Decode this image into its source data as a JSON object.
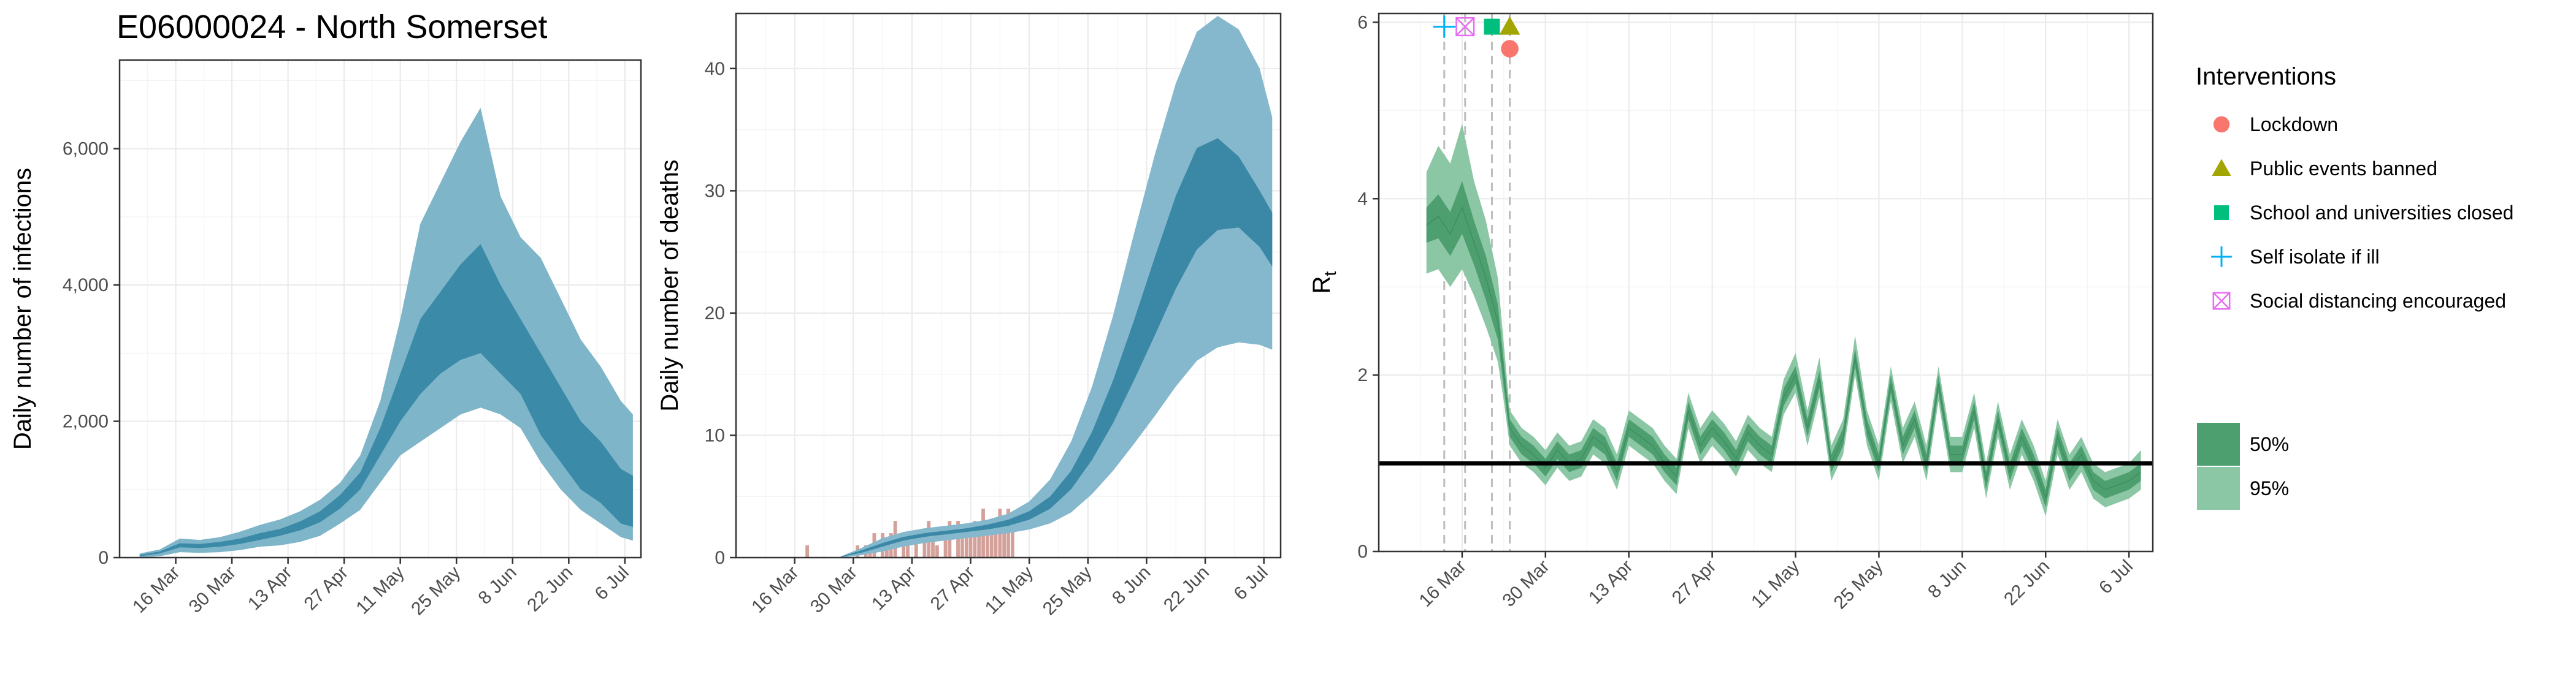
{
  "title": "E06000024 - North Somerset",
  "colors": {
    "infection_band_95": "#7fb5c8",
    "infection_band_50": "#3a8aa8",
    "deaths_band_95": "#85b8cc",
    "deaths_band_50": "#3a88a6",
    "observed_deaths": "#d4a09a",
    "rt_band_95": "#8cc7a5",
    "rt_band_50": "#4e9f6f",
    "lockdown": "#f8766d",
    "public_events": "#a3a500",
    "schools": "#00bf7d",
    "self_isolate": "#00b0f6",
    "social_distancing": "#e76bf3"
  },
  "chart_data": [
    {
      "type": "area",
      "ylabel": "Daily number of infections",
      "xlabel": "",
      "x_ticks": [
        "16 Mar",
        "30 Mar",
        "13 Apr",
        "27 Apr",
        "11 May",
        "25 May",
        "8 Jun",
        "22 Jun",
        "6 Jul"
      ],
      "x_tick_days": [
        14,
        28,
        42,
        56,
        70,
        84,
        98,
        112,
        126
      ],
      "x_range_days": [
        0,
        130
      ],
      "y_ticks": [
        "0",
        "2,000",
        "4,000",
        "6,000"
      ],
      "y_tick_values": [
        0,
        2000,
        4000,
        6000
      ],
      "ylim": [
        0,
        7300
      ],
      "grid": true,
      "x_days": [
        5,
        10,
        15,
        20,
        25,
        30,
        35,
        40,
        45,
        50,
        55,
        60,
        65,
        70,
        75,
        80,
        85,
        90,
        95,
        100,
        105,
        110,
        115,
        120,
        125,
        128
      ],
      "band_95_low": [
        0,
        20,
        80,
        70,
        80,
        110,
        160,
        180,
        230,
        320,
        500,
        700,
        1100,
        1500,
        1700,
        1900,
        2100,
        2200,
        2100,
        1900,
        1400,
        1000,
        700,
        500,
        300,
        250
      ],
      "band_95_high": [
        60,
        120,
        280,
        260,
        300,
        380,
        480,
        560,
        680,
        850,
        1100,
        1500,
        2300,
        3500,
        4900,
        5500,
        6100,
        6600,
        5300,
        4700,
        4400,
        3800,
        3200,
        2800,
        2300,
        2100
      ],
      "band_50_low": [
        20,
        60,
        150,
        140,
        160,
        200,
        260,
        320,
        400,
        520,
        720,
        1000,
        1500,
        2000,
        2400,
        2700,
        2900,
        3000,
        2700,
        2400,
        1800,
        1400,
        1000,
        800,
        500,
        450
      ],
      "band_50_high": [
        40,
        90,
        210,
        200,
        230,
        280,
        360,
        420,
        530,
        680,
        920,
        1250,
        1900,
        2700,
        3500,
        3900,
        4300,
        4600,
        4000,
        3500,
        3000,
        2500,
        2000,
        1700,
        1300,
        1200
      ]
    },
    {
      "type": "area",
      "ylabel": "Daily number of deaths",
      "xlabel": "",
      "x_ticks": [
        "16 Mar",
        "30 Mar",
        "13 Apr",
        "27 Apr",
        "11 May",
        "25 May",
        "8 Jun",
        "22 Jun",
        "6 Jul"
      ],
      "x_tick_days": [
        14,
        28,
        42,
        56,
        70,
        84,
        98,
        112,
        126
      ],
      "x_range_days": [
        0,
        130
      ],
      "y_ticks": [
        "0",
        "10",
        "20",
        "30",
        "40"
      ],
      "y_tick_values": [
        0,
        10,
        20,
        30,
        40
      ],
      "ylim": [
        0,
        44.5
      ],
      "grid": true,
      "x_days": [
        25,
        30,
        35,
        40,
        45,
        50,
        55,
        60,
        65,
        70,
        75,
        80,
        85,
        90,
        95,
        100,
        105,
        110,
        115,
        120,
        125,
        128
      ],
      "band_95_low": [
        0,
        0.2,
        0.5,
        0.9,
        1.2,
        1.4,
        1.6,
        1.8,
        2.0,
        2.3,
        2.8,
        3.7,
        5.2,
        7.1,
        9.3,
        11.6,
        14.0,
        16.1,
        17.2,
        17.6,
        17.4,
        17.0
      ],
      "band_95_high": [
        0.1,
        0.8,
        1.6,
        2.1,
        2.4,
        2.6,
        2.8,
        3.1,
        3.6,
        4.6,
        6.4,
        9.5,
        14.0,
        19.8,
        26.5,
        33.0,
        38.8,
        43.0,
        44.3,
        43.2,
        40.0,
        36.0
      ],
      "band_50_low": [
        0.05,
        0.4,
        0.9,
        1.4,
        1.7,
        1.9,
        2.1,
        2.3,
        2.6,
        3.1,
        4.0,
        5.6,
        8.0,
        11.0,
        14.5,
        18.2,
        22.0,
        25.2,
        26.8,
        27.0,
        25.4,
        23.8
      ],
      "band_50_high": [
        0.08,
        0.6,
        1.2,
        1.7,
        2.0,
        2.2,
        2.4,
        2.7,
        3.1,
        3.8,
        5.0,
        7.1,
        10.3,
        14.5,
        19.4,
        24.6,
        29.6,
        33.5,
        34.3,
        32.8,
        30.0,
        28.2
      ],
      "observed_days": [
        17,
        29,
        31,
        32,
        33,
        35,
        36,
        37,
        38,
        40,
        41,
        43,
        45,
        46,
        47,
        48,
        50,
        51,
        53,
        54,
        55,
        56,
        57,
        58,
        59,
        60,
        61,
        62,
        63,
        64,
        65,
        66
      ],
      "observed_values": [
        1,
        1,
        1,
        1,
        2,
        2,
        1,
        2,
        3,
        2,
        1,
        2,
        2,
        3,
        2,
        1,
        2,
        3,
        3,
        2,
        2,
        2,
        3,
        2,
        4,
        3,
        2,
        3,
        4,
        3,
        4,
        3
      ]
    },
    {
      "type": "area",
      "ylabel": "R",
      "ylabel_subscript": "t",
      "xlabel": "",
      "x_ticks": [
        "16 Mar",
        "30 Mar",
        "13 Apr",
        "27 Apr",
        "11 May",
        "25 May",
        "8 Jun",
        "22 Jun",
        "6 Jul"
      ],
      "x_tick_days": [
        14,
        28,
        42,
        56,
        70,
        84,
        98,
        112,
        126
      ],
      "x_range_days": [
        0,
        130
      ],
      "y_ticks": [
        "0",
        "2",
        "4",
        "6"
      ],
      "y_tick_values": [
        0,
        2,
        4,
        6
      ],
      "ylim": [
        0,
        6.1
      ],
      "grid": true,
      "reference_line": 1,
      "x_days": [
        8,
        10,
        12,
        14,
        16,
        18,
        20,
        21,
        22,
        24,
        26,
        28,
        30,
        32,
        34,
        36,
        38,
        40,
        42,
        44,
        46,
        48,
        50,
        52,
        54,
        56,
        58,
        60,
        62,
        64,
        66,
        68,
        70,
        72,
        74,
        76,
        78,
        80,
        82,
        84,
        86,
        88,
        90,
        92,
        94,
        96,
        98,
        100,
        102,
        104,
        106,
        108,
        110,
        112,
        114,
        116,
        118,
        120,
        122,
        124,
        126,
        128
      ],
      "median": [
        3.7,
        3.8,
        3.6,
        3.9,
        3.5,
        3.1,
        2.6,
        2.0,
        1.4,
        1.2,
        1.1,
        0.95,
        1.15,
        1.0,
        1.05,
        1.3,
        1.2,
        0.9,
        1.4,
        1.3,
        1.2,
        1.0,
        0.85,
        1.6,
        1.2,
        1.4,
        1.25,
        1.05,
        1.35,
        1.2,
        1.1,
        1.75,
        2.0,
        1.4,
        1.95,
        1.0,
        1.3,
        2.2,
        1.4,
        1.0,
        1.9,
        1.2,
        1.5,
        1.0,
        1.9,
        1.1,
        1.1,
        1.6,
        0.8,
        1.5,
        0.9,
        1.3,
        1.0,
        0.6,
        1.3,
        0.9,
        1.1,
        0.8,
        0.7,
        0.75,
        0.8,
        0.9
      ],
      "band_50_low": [
        3.5,
        3.55,
        3.35,
        3.6,
        3.25,
        2.85,
        2.4,
        1.85,
        1.3,
        1.1,
        1.0,
        0.85,
        1.05,
        0.9,
        0.95,
        1.2,
        1.1,
        0.8,
        1.3,
        1.2,
        1.1,
        0.9,
        0.75,
        1.5,
        1.1,
        1.3,
        1.15,
        0.95,
        1.25,
        1.1,
        1.0,
        1.65,
        1.9,
        1.3,
        1.85,
        0.9,
        1.2,
        2.1,
        1.3,
        0.9,
        1.8,
        1.1,
        1.4,
        0.9,
        1.8,
        1.0,
        1.0,
        1.5,
        0.7,
        1.4,
        0.8,
        1.2,
        0.9,
        0.5,
        1.2,
        0.8,
        1.0,
        0.7,
        0.6,
        0.65,
        0.7,
        0.8
      ],
      "band_50_high": [
        3.9,
        4.05,
        3.85,
        4.2,
        3.75,
        3.35,
        2.8,
        2.15,
        1.5,
        1.3,
        1.2,
        1.05,
        1.25,
        1.1,
        1.15,
        1.4,
        1.3,
        1.0,
        1.5,
        1.4,
        1.3,
        1.1,
        0.95,
        1.7,
        1.3,
        1.5,
        1.35,
        1.15,
        1.45,
        1.3,
        1.2,
        1.85,
        2.1,
        1.5,
        2.05,
        1.1,
        1.4,
        2.3,
        1.5,
        1.1,
        2.0,
        1.3,
        1.6,
        1.1,
        2.0,
        1.2,
        1.2,
        1.7,
        0.9,
        1.6,
        1.0,
        1.4,
        1.1,
        0.7,
        1.4,
        1.0,
        1.2,
        0.9,
        0.8,
        0.85,
        0.9,
        1.0
      ],
      "band_95_low": [
        3.15,
        3.2,
        3.0,
        3.2,
        2.9,
        2.55,
        2.15,
        1.7,
        1.2,
        1.0,
        0.9,
        0.75,
        0.95,
        0.8,
        0.85,
        1.1,
        1.0,
        0.7,
        1.2,
        1.1,
        1.0,
        0.8,
        0.65,
        1.4,
        1.0,
        1.2,
        1.05,
        0.85,
        1.15,
        1.0,
        0.9,
        1.55,
        1.8,
        1.2,
        1.75,
        0.8,
        1.1,
        2.0,
        1.2,
        0.8,
        1.7,
        1.0,
        1.3,
        0.8,
        1.7,
        0.9,
        0.9,
        1.4,
        0.6,
        1.3,
        0.7,
        1.1,
        0.8,
        0.4,
        1.1,
        0.7,
        0.9,
        0.6,
        0.5,
        0.55,
        0.6,
        0.7
      ],
      "band_95_high": [
        4.3,
        4.6,
        4.4,
        4.85,
        4.2,
        3.75,
        3.1,
        2.35,
        1.6,
        1.4,
        1.3,
        1.15,
        1.35,
        1.2,
        1.25,
        1.5,
        1.4,
        1.1,
        1.6,
        1.5,
        1.4,
        1.2,
        1.05,
        1.8,
        1.4,
        1.6,
        1.45,
        1.25,
        1.55,
        1.4,
        1.3,
        1.95,
        2.25,
        1.6,
        2.2,
        1.2,
        1.5,
        2.45,
        1.6,
        1.2,
        2.1,
        1.4,
        1.7,
        1.2,
        2.1,
        1.3,
        1.3,
        1.8,
        1.0,
        1.7,
        1.1,
        1.5,
        1.2,
        0.8,
        1.5,
        1.1,
        1.3,
        1.0,
        0.9,
        0.95,
        1.0,
        1.15
      ],
      "interventions": [
        {
          "name": "Self isolate if ill",
          "day": 11,
          "marker": "plus",
          "y": 5.95
        },
        {
          "name": "Social distancing encouraged",
          "day": 14.5,
          "marker": "boxcross",
          "y": 5.95
        },
        {
          "name": "School and universities closed",
          "day": 19,
          "marker": "square",
          "y": 5.95
        },
        {
          "name": "Public events banned",
          "day": 22,
          "marker": "triangle",
          "y": 5.95
        },
        {
          "name": "Lockdown",
          "day": 22,
          "marker": "circle",
          "y": 5.7
        }
      ]
    }
  ],
  "legend": {
    "title": "Interventions",
    "items": [
      {
        "label": "Lockdown",
        "marker": "circle",
        "color_key": "lockdown"
      },
      {
        "label": "Public events banned",
        "marker": "triangle",
        "color_key": "public_events"
      },
      {
        "label": "School and universities closed",
        "marker": "square",
        "color_key": "schools"
      },
      {
        "label": "Self isolate if ill",
        "marker": "plus",
        "color_key": "self_isolate"
      },
      {
        "label": "Social distancing encouraged",
        "marker": "boxcross",
        "color_key": "social_distancing"
      }
    ],
    "bands": [
      {
        "label": "50%",
        "color_key": "rt_band_50"
      },
      {
        "label": "95%",
        "color_key": "rt_band_95"
      }
    ]
  }
}
